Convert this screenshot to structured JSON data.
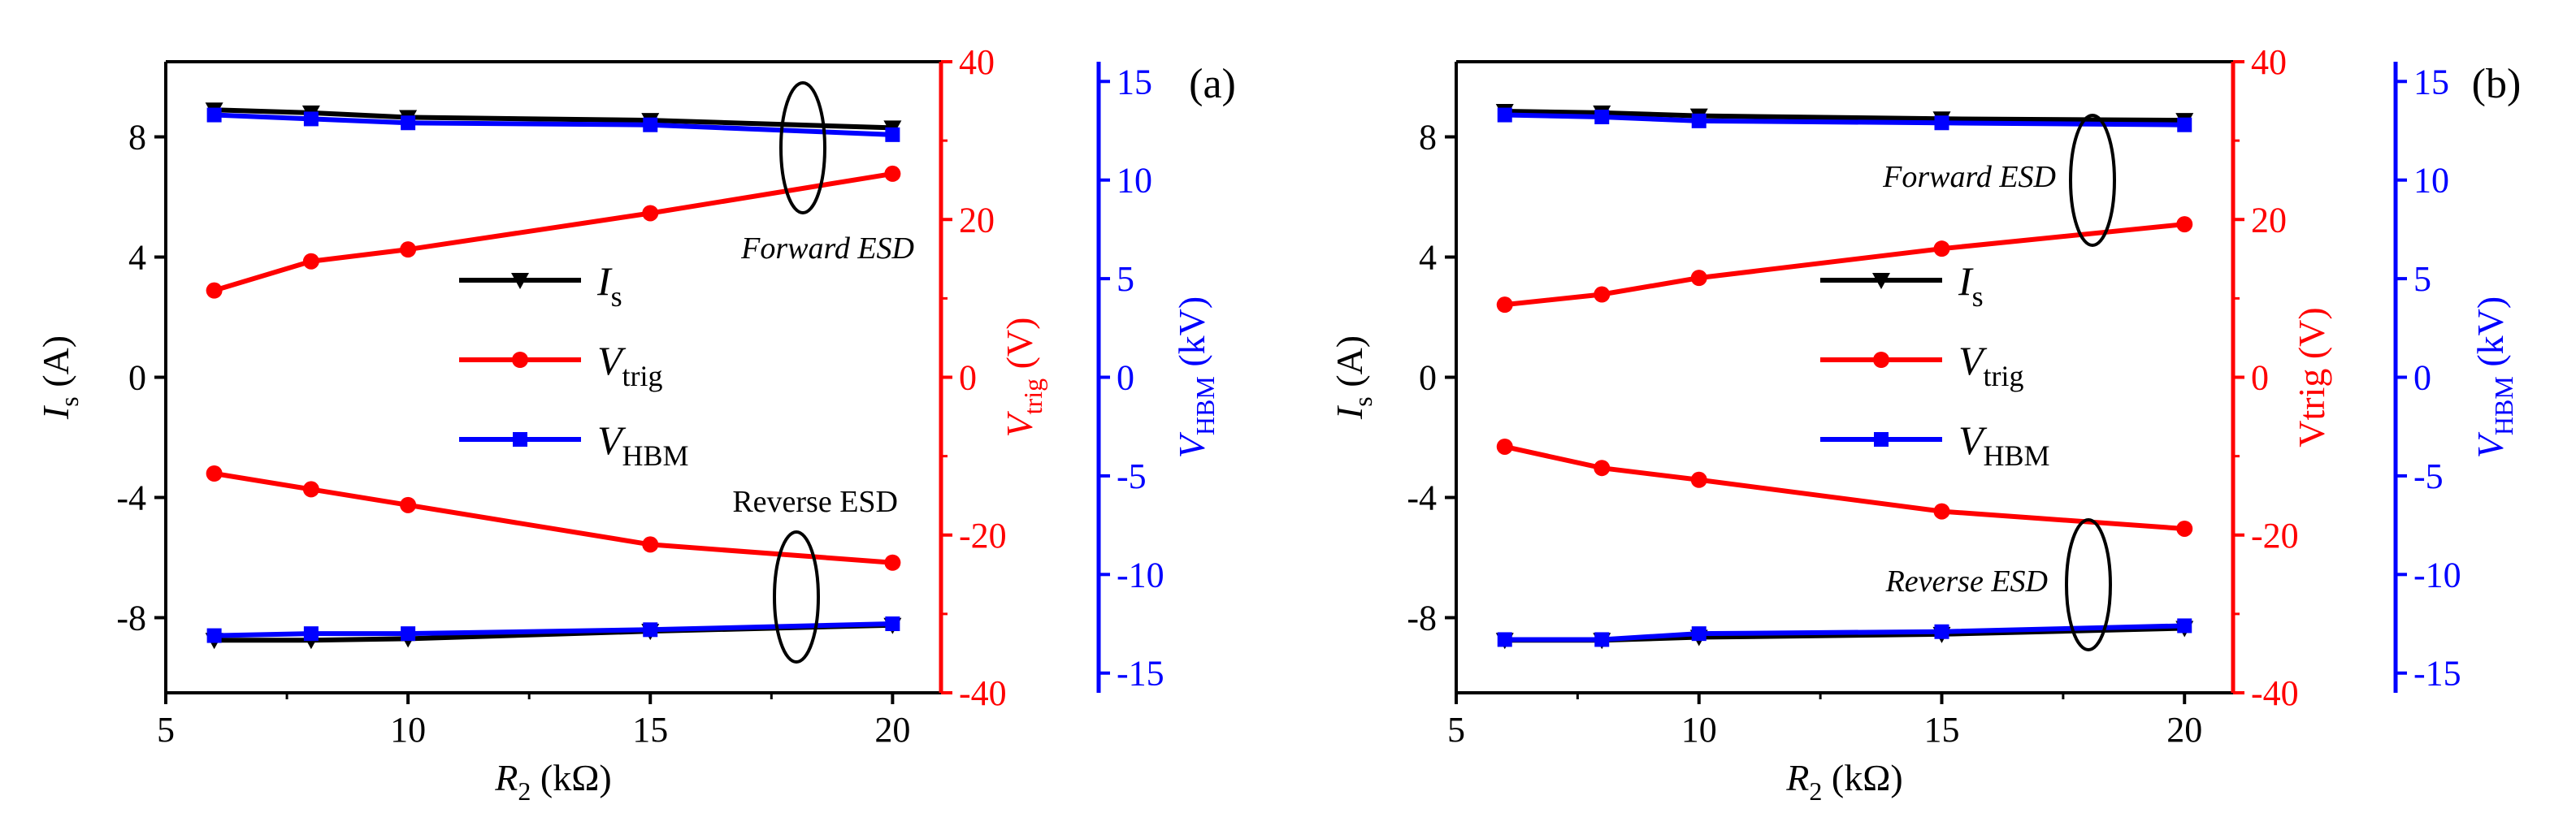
{
  "figure_title": "",
  "colors": {
    "is": "#000000",
    "vtrig": "#ff0000",
    "vhbm": "#0000ff",
    "axis": "#000000"
  },
  "chart_data": [
    {
      "type": "line",
      "panel_label": "(a)",
      "x": [
        6,
        8,
        10,
        15,
        20
      ],
      "xlim": [
        5,
        21
      ],
      "xticks": [
        "5",
        "10",
        "15",
        "20"
      ],
      "xlabel": {
        "sym": "R",
        "sub": "2",
        "unit": " (kΩ)"
      },
      "y_left": {
        "label_sym": "I",
        "label_sub": "s",
        "unit": " (A)",
        "lim": [
          -10.5,
          10.5
        ],
        "ticks": [
          "-8",
          "-4",
          "0",
          "4",
          "8"
        ]
      },
      "y_vtrig": {
        "label_sym": "V",
        "label_sub": "trig",
        "unit": " (V)",
        "lim": [
          -40,
          40
        ],
        "ticks": [
          "-40",
          "-20",
          "0",
          "20",
          "40"
        ]
      },
      "y_vhbm": {
        "label_sym": "V",
        "label_sub": "HBM",
        "unit": " (kV)",
        "lim": [
          -16,
          16
        ],
        "ticks": [
          "-15",
          "-10",
          "-5",
          "0",
          "5",
          "10",
          "15"
        ]
      },
      "series": [
        {
          "name": "Is forward",
          "axis": "left",
          "marker": "triangle",
          "values": [
            8.9,
            8.8,
            8.65,
            8.55,
            8.3
          ]
        },
        {
          "name": "Is reverse",
          "axis": "left",
          "marker": "triangle",
          "values": [
            -8.75,
            -8.75,
            -8.7,
            -8.45,
            -8.25
          ]
        },
        {
          "name": "Vtrig forward",
          "axis": "vtrig",
          "marker": "circle",
          "values": [
            11,
            14.7,
            16.2,
            20.8,
            25.8
          ]
        },
        {
          "name": "Vtrig reverse",
          "axis": "vtrig",
          "marker": "circle",
          "values": [
            -12.2,
            -14.2,
            -16.2,
            -21.2,
            -23.5
          ]
        },
        {
          "name": "VHBM forward",
          "axis": "vhbm",
          "marker": "square",
          "values": [
            13.3,
            13.1,
            12.9,
            12.8,
            12.3
          ]
        },
        {
          "name": "VHBM reverse",
          "axis": "vhbm",
          "marker": "square",
          "values": [
            -13.1,
            -13,
            -13,
            -12.8,
            -12.5
          ]
        }
      ],
      "legend": [
        {
          "sym": "I",
          "sub": "s",
          "marker": "triangle",
          "color": "#000000"
        },
        {
          "sym": "V",
          "sub": "trig",
          "marker": "circle",
          "color": "#ff0000"
        },
        {
          "sym": "V",
          "sub": "HBM",
          "marker": "square",
          "color": "#0000ff"
        }
      ],
      "annotations": {
        "forward": "Forward ESD",
        "reverse": "Reverse ESD"
      }
    },
    {
      "type": "line",
      "panel_label": "(b)",
      "x": [
        6,
        8,
        10,
        15,
        20
      ],
      "xlim": [
        5,
        21
      ],
      "xticks": [
        "5",
        "10",
        "15",
        "20"
      ],
      "xlabel": {
        "sym": "R",
        "sub": "2",
        "unit": " (kΩ)"
      },
      "y_left": {
        "label_sym": "I",
        "label_sub": "s",
        "unit": " (A)",
        "lim": [
          -10.5,
          10.5
        ],
        "ticks": [
          "-8",
          "-4",
          "0",
          "4",
          "8"
        ]
      },
      "y_vtrig": {
        "label_text": "Vtrig (V)",
        "lim": [
          -40,
          40
        ],
        "ticks": [
          "-40",
          "-20",
          "0",
          "20",
          "40"
        ]
      },
      "y_vhbm": {
        "label_sym": "V",
        "label_sub": "HBM",
        "unit": " (kV)",
        "lim": [
          -16,
          16
        ],
        "ticks": [
          "-15",
          "-10",
          "-5",
          "0",
          "5",
          "10",
          "15"
        ]
      },
      "series": [
        {
          "name": "Is forward",
          "axis": "left",
          "marker": "triangle",
          "values": [
            8.85,
            8.8,
            8.7,
            8.6,
            8.55
          ]
        },
        {
          "name": "Is reverse",
          "axis": "left",
          "marker": "triangle",
          "values": [
            -8.75,
            -8.75,
            -8.65,
            -8.55,
            -8.35
          ]
        },
        {
          "name": "Vtrig forward",
          "axis": "vtrig",
          "marker": "circle",
          "values": [
            9.2,
            10.5,
            12.6,
            16.3,
            19.4
          ]
        },
        {
          "name": "Vtrig reverse",
          "axis": "vtrig",
          "marker": "circle",
          "values": [
            -8.8,
            -11.5,
            -13,
            -17,
            -19.2
          ]
        },
        {
          "name": "VHBM forward",
          "axis": "vhbm",
          "marker": "square",
          "values": [
            13.3,
            13.2,
            13,
            12.9,
            12.8
          ]
        },
        {
          "name": "VHBM reverse",
          "axis": "vhbm",
          "marker": "square",
          "values": [
            -13.3,
            -13.3,
            -13,
            -12.9,
            -12.6
          ]
        }
      ],
      "legend": [
        {
          "sym": "I",
          "sub": "s",
          "marker": "triangle",
          "color": "#000000"
        },
        {
          "sym": "V",
          "sub": "trig",
          "marker": "circle",
          "color": "#ff0000"
        },
        {
          "sym": "V",
          "sub": "HBM",
          "marker": "square",
          "color": "#0000ff"
        }
      ],
      "annotations": {
        "forward": "Forward ESD",
        "reverse": "Reverse ESD"
      }
    }
  ]
}
